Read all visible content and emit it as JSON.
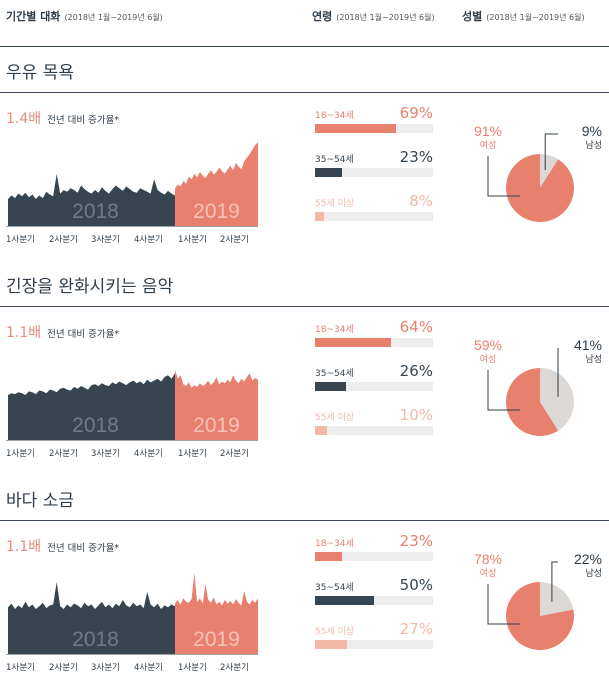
{
  "header": {
    "col1": {
      "title": "기간별 대화",
      "period": "(2018년 1월~2019년 6월)"
    },
    "col2": {
      "title": "연령",
      "period": "(2018년 1월~2019년 6월)"
    },
    "col3": {
      "title": "성별",
      "period": "(2018년 1월~2019년 6월)"
    }
  },
  "colors": {
    "dark": "#36454f",
    "coral": "#e8806e",
    "light": "#f3b9a8",
    "male_gray": "#dcd8d5"
  },
  "growth_label": "전년 대비 증가율*",
  "chart_data": [
    {
      "type": "area",
      "title": "우유 목욕",
      "growth": "1.4배",
      "x_labels": [
        "1사분기",
        "2사분기",
        "3사분기",
        "4사분기",
        "1사분기",
        "2사분기"
      ],
      "years": [
        "2018",
        "2019"
      ],
      "series_2018": [
        0.3,
        0.34,
        0.31,
        0.36,
        0.33,
        0.37,
        0.32,
        0.35,
        0.3,
        0.34,
        0.31,
        0.38,
        0.35,
        0.33,
        0.58,
        0.36,
        0.4,
        0.38,
        0.42,
        0.4,
        0.37,
        0.45,
        0.41,
        0.38,
        0.36,
        0.4,
        0.37,
        0.43,
        0.39,
        0.36,
        0.41,
        0.45,
        0.42,
        0.39,
        0.44,
        0.41,
        0.38,
        0.37,
        0.42,
        0.4,
        0.38,
        0.36,
        0.52,
        0.4,
        0.37,
        0.35,
        0.39,
        0.36,
        0.34
      ],
      "series_2019": [
        0.42,
        0.46,
        0.44,
        0.5,
        0.47,
        0.55,
        0.52,
        0.58,
        0.54,
        0.6,
        0.56,
        0.53,
        0.58,
        0.62,
        0.57,
        0.6,
        0.65,
        0.61,
        0.58,
        0.63,
        0.67,
        0.62,
        0.7,
        0.66,
        0.63,
        0.72,
        0.76,
        0.8,
        0.85,
        0.9,
        0.93
      ],
      "age": [
        {
          "label": "18~34세",
          "pct": "69%",
          "value": 0.69,
          "tone": "coral"
        },
        {
          "label": "35~54세",
          "pct": "23%",
          "value": 0.23,
          "tone": "dark"
        },
        {
          "label": "55세 이상",
          "pct": "8%",
          "value": 0.08,
          "tone": "light"
        }
      ],
      "gender": {
        "female": {
          "label": "여성",
          "pct": "91%",
          "value": 0.91
        },
        "male": {
          "label": "남성",
          "pct": "9%",
          "value": 0.09
        }
      }
    },
    {
      "type": "area",
      "title": "긴장을 완화시키는 음악",
      "growth": "1.1배",
      "x_labels": [
        "1사분기",
        "2사분기",
        "3사분기",
        "4사분기",
        "1사분기",
        "2사분기"
      ],
      "years": [
        "2018",
        "2019"
      ],
      "series_2018": [
        0.5,
        0.52,
        0.51,
        0.53,
        0.52,
        0.5,
        0.54,
        0.53,
        0.51,
        0.55,
        0.54,
        0.52,
        0.56,
        0.55,
        0.53,
        0.57,
        0.58,
        0.56,
        0.55,
        0.59,
        0.57,
        0.6,
        0.58,
        0.56,
        0.61,
        0.62,
        0.6,
        0.63,
        0.61,
        0.6,
        0.64,
        0.62,
        0.65,
        0.63,
        0.61,
        0.64,
        0.66,
        0.63,
        0.65,
        0.62,
        0.67,
        0.64,
        0.66,
        0.68,
        0.65,
        0.7,
        0.72,
        0.68,
        0.74
      ],
      "series_2019": [
        0.78,
        0.68,
        0.72,
        0.62,
        0.6,
        0.64,
        0.58,
        0.61,
        0.59,
        0.63,
        0.6,
        0.62,
        0.66,
        0.61,
        0.64,
        0.7,
        0.62,
        0.65,
        0.63,
        0.67,
        0.64,
        0.72,
        0.66,
        0.63,
        0.68,
        0.65,
        0.7,
        0.74,
        0.66,
        0.69,
        0.67
      ],
      "age": [
        {
          "label": "18~34세",
          "pct": "64%",
          "value": 0.64,
          "tone": "coral"
        },
        {
          "label": "35~54세",
          "pct": "26%",
          "value": 0.26,
          "tone": "dark"
        },
        {
          "label": "55세 이상",
          "pct": "10%",
          "value": 0.1,
          "tone": "light"
        }
      ],
      "gender": {
        "female": {
          "label": "여성",
          "pct": "59%",
          "value": 0.59
        },
        "male": {
          "label": "남성",
          "pct": "41%",
          "value": 0.41
        }
      }
    },
    {
      "type": "area",
      "title": "바다 소금",
      "growth": "1.1배",
      "x_labels": [
        "1사분기",
        "2사분기",
        "3사분기",
        "4사분기",
        "1사분기",
        "2사분기"
      ],
      "years": [
        "2018",
        "2019"
      ],
      "series_2018": [
        0.52,
        0.56,
        0.5,
        0.54,
        0.51,
        0.58,
        0.52,
        0.55,
        0.5,
        0.53,
        0.57,
        0.51,
        0.54,
        0.55,
        0.8,
        0.53,
        0.5,
        0.55,
        0.52,
        0.56,
        0.54,
        0.51,
        0.57,
        0.53,
        0.55,
        0.5,
        0.54,
        0.58,
        0.52,
        0.55,
        0.51,
        0.56,
        0.53,
        0.6,
        0.54,
        0.52,
        0.57,
        0.53,
        0.55,
        0.51,
        0.69,
        0.55,
        0.52,
        0.56,
        0.5,
        0.54,
        0.52,
        0.55,
        0.53
      ],
      "series_2019": [
        0.56,
        0.6,
        0.55,
        0.62,
        0.58,
        0.57,
        0.61,
        0.9,
        0.58,
        0.62,
        0.56,
        0.78,
        0.6,
        0.57,
        0.63,
        0.55,
        0.58,
        0.54,
        0.6,
        0.56,
        0.59,
        0.55,
        0.61,
        0.57,
        0.54,
        0.7,
        0.58,
        0.55,
        0.6,
        0.57,
        0.62
      ],
      "age": [
        {
          "label": "18~34세",
          "pct": "23%",
          "value": 0.23,
          "tone": "coral"
        },
        {
          "label": "35~54세",
          "pct": "50%",
          "value": 0.5,
          "tone": "dark"
        },
        {
          "label": "55세 이상",
          "pct": "27%",
          "value": 0.27,
          "tone": "light"
        }
      ],
      "gender": {
        "female": {
          "label": "여성",
          "pct": "78%",
          "value": 0.78
        },
        "male": {
          "label": "남성",
          "pct": "22%",
          "value": 0.22
        }
      }
    }
  ]
}
